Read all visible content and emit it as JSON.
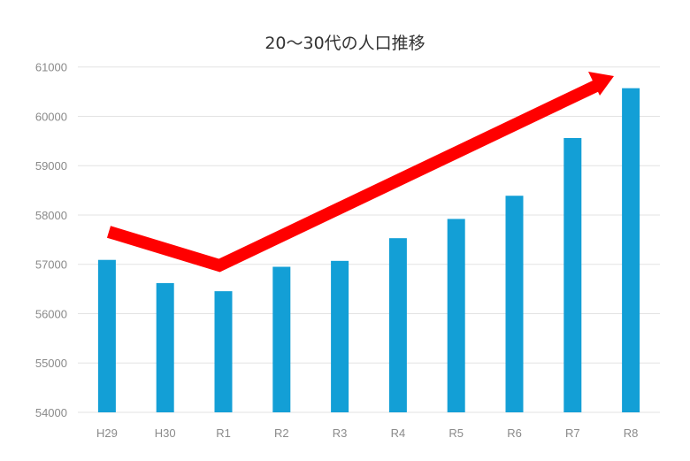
{
  "chart_data": {
    "type": "bar",
    "title": "20～30代の人口推移",
    "categories": [
      "H29",
      "H30",
      "R1",
      "R2",
      "R3",
      "R4",
      "R5",
      "R6",
      "R7",
      "R8"
    ],
    "values": [
      57090,
      56620,
      56455,
      56950,
      57070,
      57530,
      57920,
      58390,
      59560,
      60570
    ],
    "xlabel": "",
    "ylabel": "",
    "ylim": [
      54000,
      61000
    ],
    "yticks": [
      54000,
      55000,
      56000,
      57000,
      58000,
      59000,
      60000,
      61000
    ],
    "grid": true,
    "legend": "none",
    "colors": {
      "bar": "#139fd6",
      "arrow": "#ff0000",
      "grid": "#e3e3e3"
    },
    "annotation": "red trend arrow: falls from H29 to R1, then rises to R8"
  }
}
